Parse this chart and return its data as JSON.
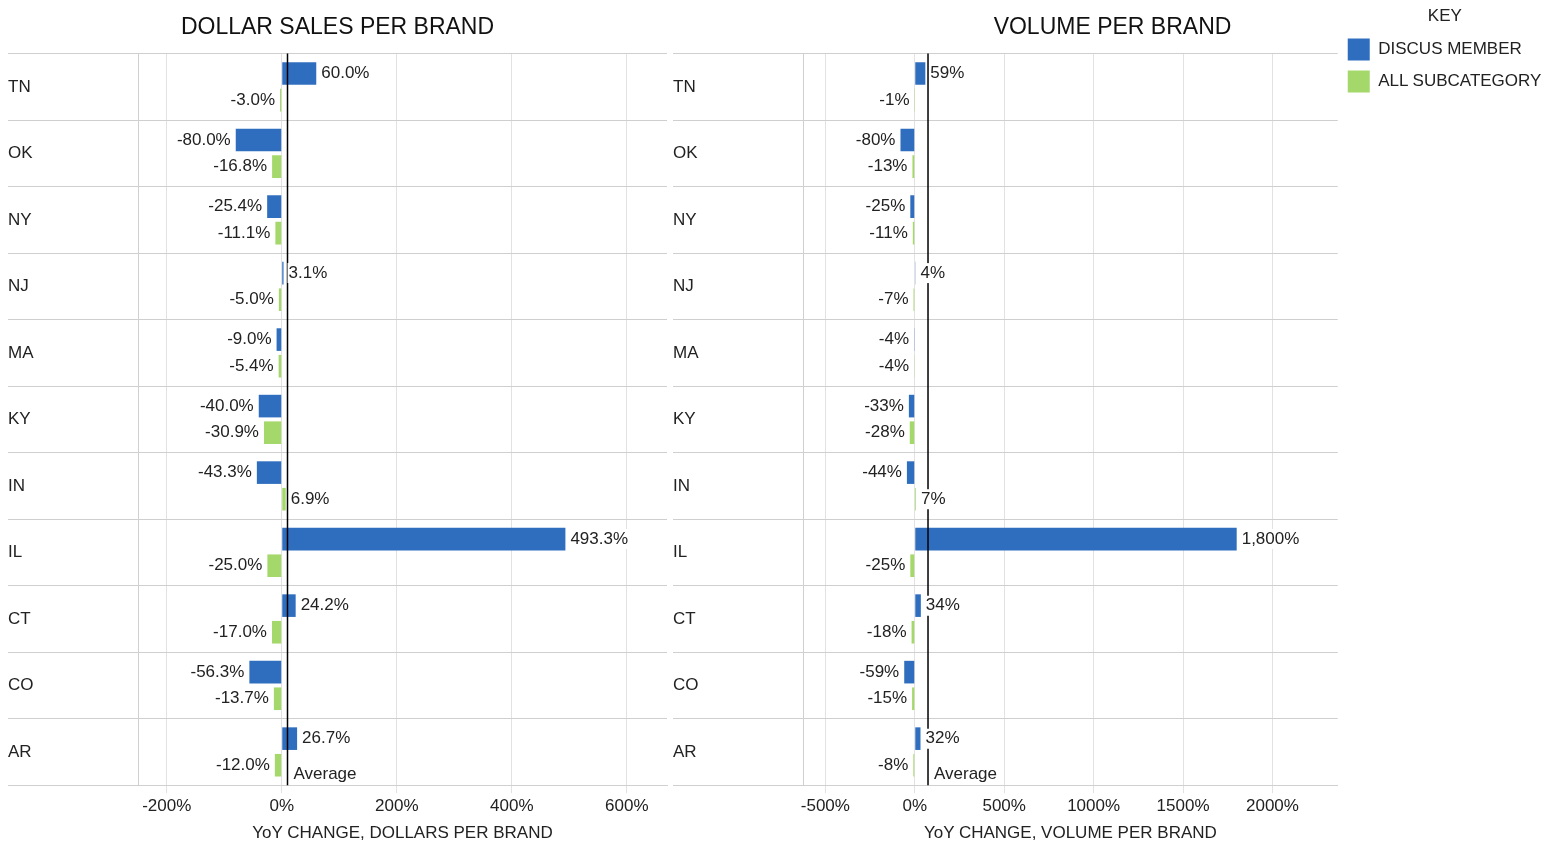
{
  "chart_data": [
    {
      "type": "bar",
      "orientation": "horizontal",
      "title": "DOLLAR SALES PER BRAND",
      "xlabel": "YoY CHANGE, DOLLARS PER BRAND",
      "categories": [
        "TN",
        "OK",
        "NY",
        "NJ",
        "MA",
        "KY",
        "IN",
        "IL",
        "CT",
        "CO",
        "AR"
      ],
      "series": [
        {
          "color": "#2f6ebf",
          "values": [
            60.0,
            -80.0,
            -25.4,
            3.1,
            -9.0,
            -40.0,
            -43.3,
            493.3,
            24.2,
            -56.3,
            26.7
          ],
          "value_labels": [
            "60.0%",
            "-80.0%",
            "-25.4%",
            "3.1%",
            "-9.0%",
            "-40.0%",
            "-43.3%",
            "493.3%",
            "24.2%",
            "-56.3%",
            "26.7%"
          ]
        },
        {
          "color": "#a5d86a",
          "values": [
            -3.0,
            -16.8,
            -11.1,
            -5.0,
            -5.4,
            -30.9,
            6.9,
            -25.0,
            -17.0,
            -13.7,
            -12.0
          ],
          "value_labels": [
            "-3.0%",
            "-16.8%",
            "-11.1%",
            "-5.0%",
            "-5.4%",
            "-30.9%",
            "6.9%",
            "-25.0%",
            "-17.0%",
            "-13.7%",
            "-12.0%"
          ]
        }
      ],
      "xlim": [
        -250,
        670
      ],
      "xticks": [
        {
          "value": -200,
          "label": "-200%"
        },
        {
          "value": 0,
          "label": "0%"
        },
        {
          "value": 200,
          "label": "200%"
        },
        {
          "value": 400,
          "label": "400%"
        },
        {
          "value": 600,
          "label": "600%"
        }
      ],
      "ref_lines": [
        {
          "axis": "x",
          "value": 10,
          "label": "Average",
          "color": "#000000"
        }
      ],
      "grid": true
    },
    {
      "type": "bar",
      "orientation": "horizontal",
      "title": "VOLUME PER BRAND",
      "xlabel": "YoY CHANGE, VOLUME PER BRAND",
      "categories": [
        "TN",
        "OK",
        "NY",
        "NJ",
        "MA",
        "KY",
        "IN",
        "IL",
        "CT",
        "CO",
        "AR"
      ],
      "series": [
        {
          "name": "DISCUS MEMBER",
          "color": "#2f6ebf",
          "values": [
            59,
            -80,
            -25,
            4,
            -4,
            -33,
            -44,
            1800,
            34,
            -59,
            32
          ],
          "value_labels": [
            "59%",
            "-80%",
            "-25%",
            "4%",
            "-4%",
            "-33%",
            "-44%",
            "1,800%",
            "34%",
            "-59%",
            "32%"
          ]
        },
        {
          "name": "ALL SUBCATEGORY",
          "color": "#a5d86a",
          "values": [
            -1,
            -13,
            -11,
            -7,
            -4,
            -28,
            7,
            -25,
            -18,
            -15,
            -8
          ],
          "value_labels": [
            "-1%",
            "-13%",
            "-11%",
            "-7%",
            "-4%",
            "-28%",
            "7%",
            "-25%",
            "-18%",
            "-15%",
            "-8%"
          ]
        }
      ],
      "xlim": [
        -625,
        2365
      ],
      "xticks": [
        {
          "value": -500,
          "label": "-500%"
        },
        {
          "value": 0,
          "label": "0%"
        },
        {
          "value": 500,
          "label": "500%"
        },
        {
          "value": 1000,
          "label": "1000%"
        },
        {
          "value": 1500,
          "label": "1500%"
        },
        {
          "value": 2000,
          "label": "2000%"
        }
      ],
      "ref_lines": [
        {
          "axis": "x",
          "value": 74,
          "label": "Average",
          "color": "#000000"
        }
      ],
      "grid": true,
      "legend": "top right",
      "legend_title": "KEY"
    }
  ]
}
